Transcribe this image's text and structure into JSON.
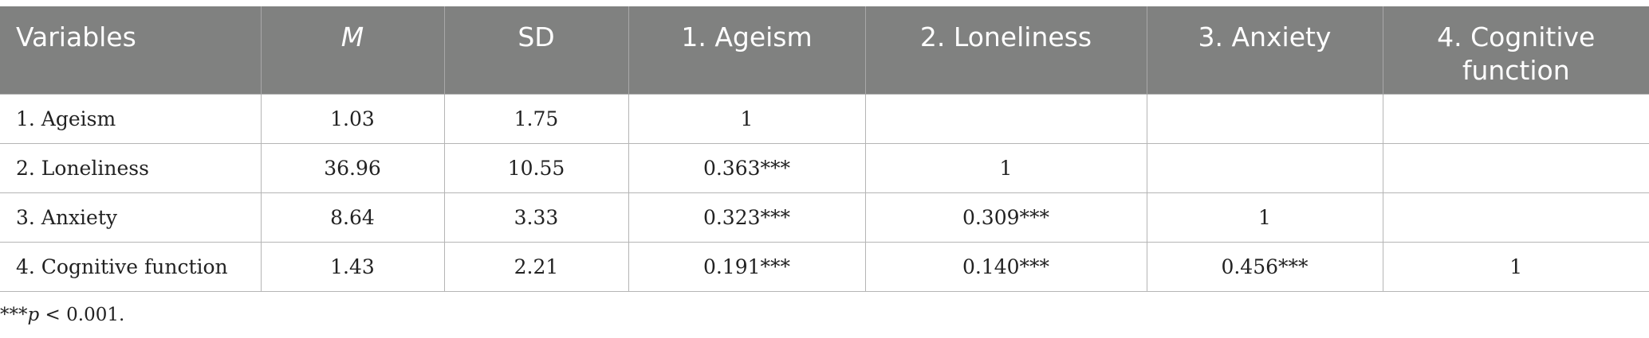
{
  "table": {
    "headers": [
      "Variables",
      "M",
      "SD",
      "1. Ageism",
      "2. Loneliness",
      "3. Anxiety",
      "4. Cognitive function"
    ],
    "rows": [
      [
        "1. Ageism",
        "1.03",
        "1.75",
        "1",
        "",
        "",
        ""
      ],
      [
        "2. Loneliness",
        "36.96",
        "10.55",
        "0.363***",
        "1",
        "",
        ""
      ],
      [
        "3. Anxiety",
        "8.64",
        "3.33",
        "0.323***",
        "0.309***",
        "1",
        ""
      ],
      [
        "4. Cognitive function",
        "1.43",
        "2.21",
        "0.191***",
        "0.140***",
        "0.456***",
        "1"
      ]
    ]
  },
  "note": {
    "stars": "***",
    "p": "p",
    "rest": " < 0.001."
  }
}
